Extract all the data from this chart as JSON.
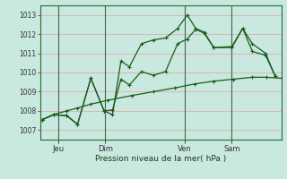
{
  "xlabel": "Pression niveau de la mer( hPa )",
  "bg_color": "#c8e8e0",
  "plot_bg_color": "#c8e8e0",
  "grid_color": "#e8a0a0",
  "line_color": "#1a5c1a",
  "spine_color": "#2a6a2a",
  "tick_color": "#333333",
  "ylim": [
    1006.5,
    1013.5
  ],
  "yticks": [
    1007,
    1008,
    1009,
    1010,
    1011,
    1012,
    1013
  ],
  "xlim": [
    0,
    1.0
  ],
  "day_positions": [
    0.075,
    0.27,
    0.6,
    0.795
  ],
  "day_labels": [
    "Jeu",
    "Dim",
    "Ven",
    "Sam"
  ],
  "line1_x": [
    0.01,
    0.055,
    0.11,
    0.155,
    0.21,
    0.28,
    0.38,
    0.47,
    0.56,
    0.64,
    0.72,
    0.8,
    0.88,
    0.94,
    1.0
  ],
  "line1_y": [
    1007.55,
    1007.8,
    1008.0,
    1008.15,
    1008.35,
    1008.55,
    1008.8,
    1009.0,
    1009.2,
    1009.4,
    1009.55,
    1009.65,
    1009.75,
    1009.75,
    1009.7
  ],
  "line2_x": [
    0.01,
    0.055,
    0.11,
    0.155,
    0.21,
    0.265,
    0.3,
    0.335,
    0.37,
    0.42,
    0.47,
    0.52,
    0.57,
    0.61,
    0.645,
    0.68,
    0.72,
    0.795,
    0.84,
    0.88,
    0.935,
    0.975
  ],
  "line2_y": [
    1007.55,
    1007.8,
    1007.75,
    1007.3,
    1009.7,
    1008.0,
    1008.05,
    1009.65,
    1009.35,
    1010.05,
    1009.85,
    1010.05,
    1011.5,
    1011.75,
    1012.25,
    1012.05,
    1011.3,
    1011.3,
    1012.3,
    1011.5,
    1011.0,
    1009.8
  ],
  "line3_x": [
    0.01,
    0.055,
    0.11,
    0.155,
    0.21,
    0.265,
    0.3,
    0.335,
    0.37,
    0.42,
    0.47,
    0.52,
    0.57,
    0.61,
    0.645,
    0.68,
    0.72,
    0.795,
    0.84,
    0.88,
    0.935,
    0.975
  ],
  "line3_y": [
    1007.55,
    1007.8,
    1007.75,
    1007.3,
    1009.7,
    1008.0,
    1007.8,
    1010.6,
    1010.3,
    1011.5,
    1011.7,
    1011.8,
    1012.3,
    1013.0,
    1012.3,
    1012.1,
    1011.3,
    1011.35,
    1012.3,
    1011.1,
    1010.9,
    1009.8
  ]
}
